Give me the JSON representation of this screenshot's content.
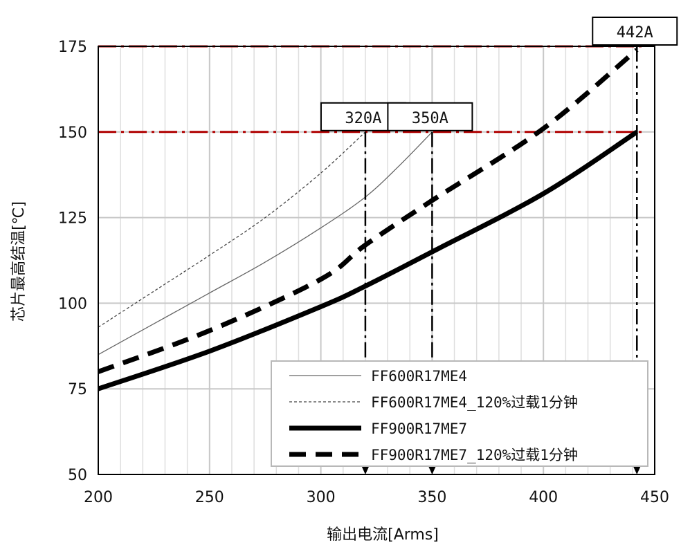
{
  "chart_data": {
    "type": "line",
    "xlabel": "输出电流[Arms]",
    "ylabel": "芯片最高结温[℃]",
    "xlim": [
      200,
      450
    ],
    "ylim": [
      50,
      175
    ],
    "xticks": [
      "200",
      "250",
      "300",
      "350",
      "400",
      "450"
    ],
    "yticks": [
      "50",
      "75",
      "100",
      "125",
      "150",
      "175"
    ],
    "grid": true,
    "legend_position": "bottom-right",
    "series": [
      {
        "name": "FF600R17ME4",
        "style": "thin-solid",
        "color": "#666666",
        "x": [
          200,
          225,
          250,
          275,
          300,
          320,
          335,
          350
        ],
        "y": [
          85,
          94,
          103,
          112,
          122,
          131,
          140,
          150
        ]
      },
      {
        "name": "FF600R17ME4_120%过载1分钟",
        "style": "thin-dashed",
        "color": "#444444",
        "x": [
          200,
          225,
          250,
          275,
          300,
          320
        ],
        "y": [
          93,
          103.5,
          114,
          125,
          138,
          150
        ]
      },
      {
        "name": "FF900R17ME7",
        "style": "thick-solid",
        "color": "#000000",
        "x": [
          200,
          250,
          300,
          320,
          350,
          400,
          442
        ],
        "y": [
          75,
          86,
          99,
          105,
          115,
          132,
          150
        ]
      },
      {
        "name": "FF900R17ME7_120%过载1分钟",
        "style": "thick-dashed",
        "color": "#000000",
        "x": [
          200,
          250,
          300,
          320,
          350,
          400,
          442
        ],
        "y": [
          80,
          92,
          107,
          117,
          130,
          151,
          174
        ]
      }
    ],
    "reference_lines": [
      {
        "axis": "y",
        "value": 150,
        "color": "#b00000",
        "style": "dash-dot"
      },
      {
        "axis": "y",
        "value": 175,
        "color": "#b00000",
        "style": "dash-dot"
      }
    ],
    "annotations": [
      {
        "label": "320A",
        "x": 320,
        "y": 150
      },
      {
        "label": "350A",
        "x": 350,
        "y": 150
      },
      {
        "label": "442A",
        "x": 442,
        "y": 175
      }
    ]
  }
}
